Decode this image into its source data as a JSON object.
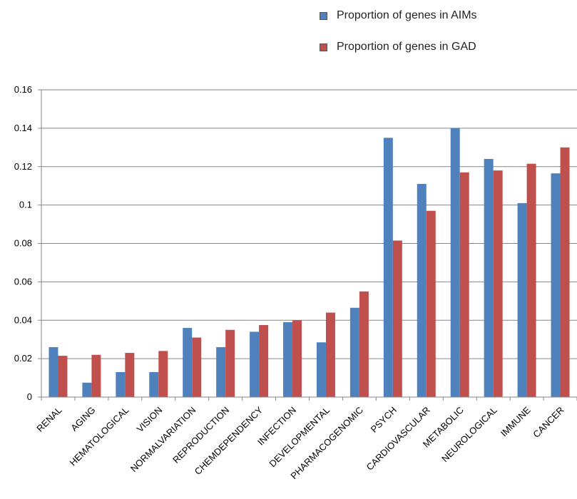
{
  "chart_data": {
    "type": "bar",
    "categories": [
      "RENAL",
      "AGING",
      "HEMATOLOGICAL",
      "VISION",
      "NORMALVARIATION",
      "REPRODUCTION",
      "CHEMDEPENDENCY",
      "INFECTION",
      "DEVELOPMENTAL",
      "PHARMACOGENOMIC",
      "PSYCH",
      "CARDIOVASCULAR",
      "METABOLIC",
      "NEUROLOGICAL",
      "IMMUNE",
      "CANCER"
    ],
    "series": [
      {
        "name": "Proportion of genes in AIMs",
        "color": "#4f81bd",
        "values": [
          0.026,
          0.0075,
          0.013,
          0.013,
          0.036,
          0.026,
          0.034,
          0.039,
          0.0285,
          0.0465,
          0.135,
          0.111,
          0.14,
          0.124,
          0.101,
          0.1165
        ]
      },
      {
        "name": "Proportion of genes in GAD",
        "color": "#c0504d",
        "values": [
          0.0215,
          0.022,
          0.023,
          0.024,
          0.031,
          0.035,
          0.0375,
          0.04,
          0.044,
          0.055,
          0.0815,
          0.097,
          0.117,
          0.118,
          0.1215,
          0.13
        ]
      }
    ],
    "ylim": [
      0,
      0.16
    ],
    "yticks": [
      "0",
      "0.02",
      "0.04",
      "0.06",
      "0.08",
      "0.1",
      "0.12",
      "0.14",
      "0.16"
    ],
    "grid": true,
    "legend_position": "top-right"
  }
}
